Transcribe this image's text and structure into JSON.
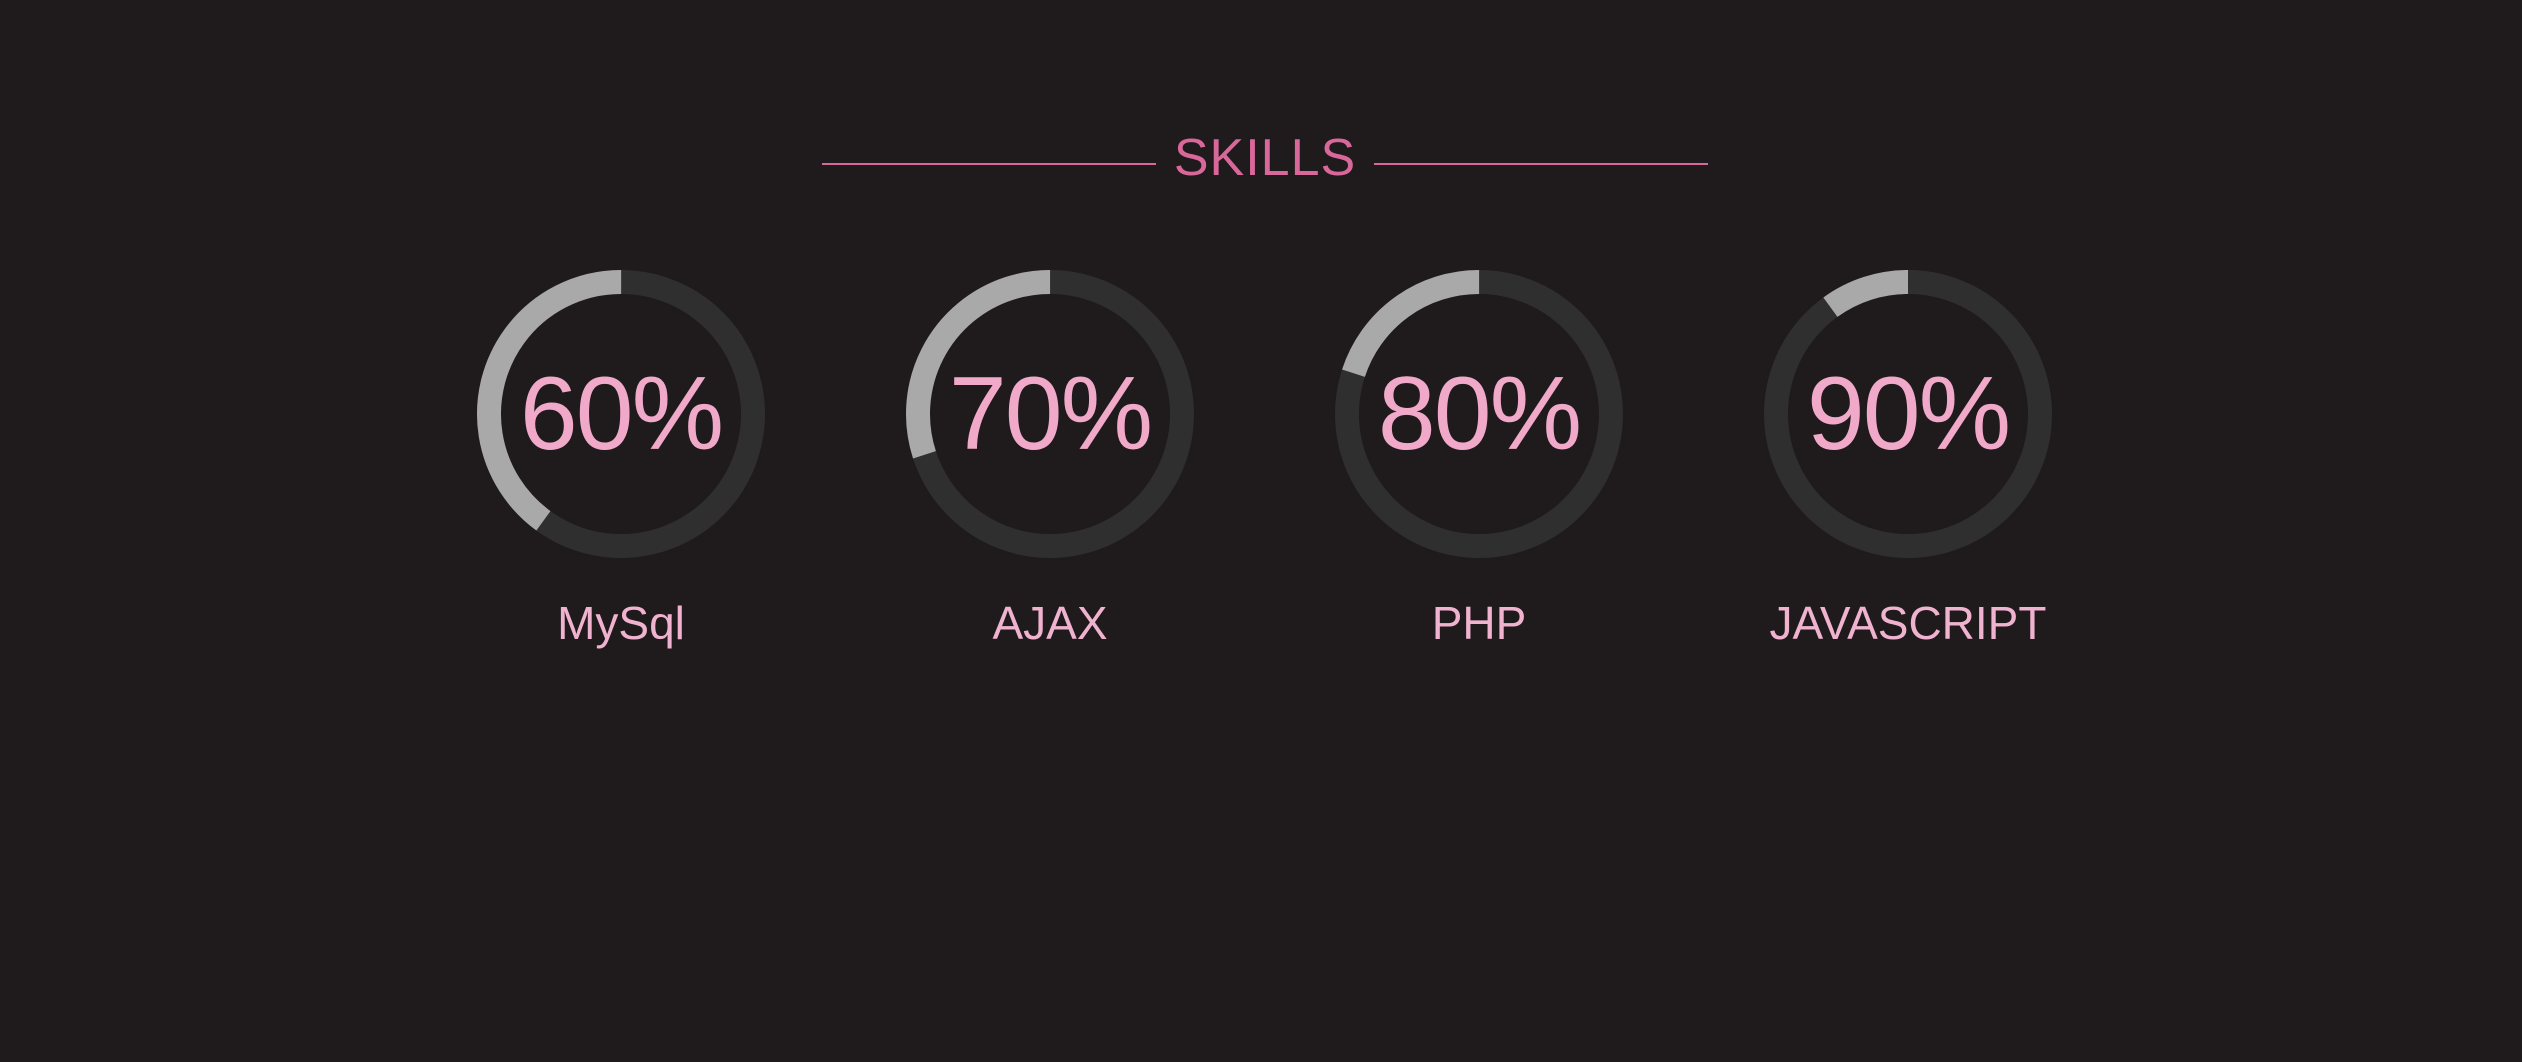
{
  "header": {
    "title": "SKILLS"
  },
  "skills": [
    {
      "name": "MySql",
      "percent_label": "60%",
      "value": 60
    },
    {
      "name": "AJAX",
      "percent_label": "70%",
      "value": 70
    },
    {
      "name": "PHP",
      "percent_label": "80%",
      "value": 80
    },
    {
      "name": "JAVASCRIPT",
      "percent_label": "90%",
      "value": 90
    }
  ],
  "colors": {
    "background": "#1f1a1c",
    "accent": "#d9689a",
    "percent_text": "#f0a9c8",
    "label_text": "#f0b3cf",
    "ring_track": "#2f2f2f",
    "ring_fill": "#a9a9a9"
  }
}
